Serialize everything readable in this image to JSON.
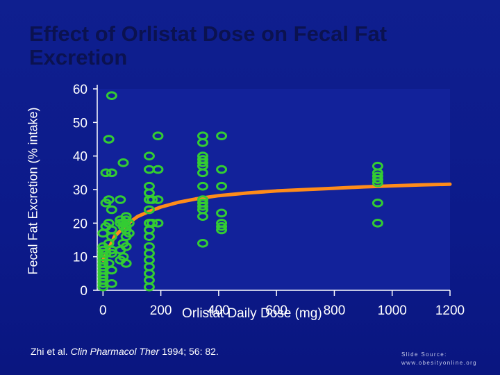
{
  "colors": {
    "background": "#0f1f8f",
    "title": "#0b1250",
    "plot_area": "#12229a",
    "marker": "#33cc33",
    "trend": "#ff8c1a",
    "text": "#ffffff"
  },
  "citation": {
    "prefix": "Zhi et al. ",
    "journal": "Clin Pharmacol Ther",
    "suffix": " 1994; 56: 82."
  },
  "source": {
    "line1": "Slide Source:",
    "line2": "www.obesityonline.org"
  },
  "chart_data": {
    "type": "scatter",
    "title": "Effect of Orlistat Dose on Fecal Fat Excretion",
    "xlabel": "Orlistat Daily Dose (mg)",
    "ylabel": "Fecal Fat Excretion (% intake)",
    "xlim": [
      -20,
      1200
    ],
    "ylim": [
      0,
      60
    ],
    "xticks": [
      0,
      200,
      400,
      600,
      800,
      1000,
      1200
    ],
    "yticks": [
      0,
      10,
      20,
      30,
      40,
      50,
      60
    ],
    "grid": false,
    "legend": "none",
    "series": [
      {
        "type": "scatter",
        "marker": "open-circle",
        "points": [
          [
            0,
            1
          ],
          [
            0,
            2
          ],
          [
            0,
            3
          ],
          [
            0,
            4
          ],
          [
            0,
            5
          ],
          [
            0,
            6
          ],
          [
            0,
            7
          ],
          [
            0,
            8
          ],
          [
            0,
            9
          ],
          [
            0,
            10
          ],
          [
            0,
            11
          ],
          [
            0,
            12
          ],
          [
            0,
            13
          ],
          [
            0,
            17
          ],
          [
            10,
            11
          ],
          [
            10,
            19
          ],
          [
            10,
            26
          ],
          [
            10,
            35
          ],
          [
            20,
            8
          ],
          [
            20,
            14
          ],
          [
            20,
            20
          ],
          [
            20,
            27
          ],
          [
            20,
            45
          ],
          [
            30,
            2
          ],
          [
            30,
            6
          ],
          [
            30,
            11
          ],
          [
            30,
            12
          ],
          [
            30,
            16
          ],
          [
            30,
            18
          ],
          [
            30,
            24
          ],
          [
            30,
            35
          ],
          [
            30,
            58
          ],
          [
            60,
            9
          ],
          [
            60,
            12
          ],
          [
            60,
            20
          ],
          [
            60,
            21
          ],
          [
            60,
            27
          ],
          [
            70,
            10
          ],
          [
            70,
            14
          ],
          [
            70,
            19
          ],
          [
            70,
            20
          ],
          [
            70,
            38
          ],
          [
            80,
            8
          ],
          [
            80,
            13
          ],
          [
            80,
            16
          ],
          [
            80,
            18
          ],
          [
            80,
            19
          ],
          [
            80,
            21
          ],
          [
            80,
            22
          ],
          [
            90,
            17
          ],
          [
            90,
            20
          ],
          [
            160,
            1
          ],
          [
            160,
            3
          ],
          [
            160,
            5
          ],
          [
            160,
            7
          ],
          [
            160,
            9
          ],
          [
            160,
            11
          ],
          [
            160,
            13
          ],
          [
            160,
            16
          ],
          [
            160,
            18
          ],
          [
            160,
            20
          ],
          [
            160,
            24
          ],
          [
            160,
            27
          ],
          [
            160,
            29
          ],
          [
            160,
            31
          ],
          [
            160,
            36
          ],
          [
            160,
            40
          ],
          [
            170,
            20
          ],
          [
            170,
            27
          ],
          [
            190,
            20
          ],
          [
            190,
            27
          ],
          [
            190,
            36
          ],
          [
            190,
            46
          ],
          [
            345,
            14
          ],
          [
            345,
            22
          ],
          [
            345,
            24
          ],
          [
            345,
            25
          ],
          [
            345,
            26
          ],
          [
            345,
            27
          ],
          [
            345,
            31
          ],
          [
            345,
            35
          ],
          [
            345,
            37
          ],
          [
            345,
            38
          ],
          [
            345,
            39
          ],
          [
            345,
            40
          ],
          [
            345,
            44
          ],
          [
            345,
            46
          ],
          [
            410,
            18
          ],
          [
            410,
            19
          ],
          [
            410,
            20
          ],
          [
            410,
            23
          ],
          [
            410,
            31
          ],
          [
            410,
            36
          ],
          [
            410,
            46
          ],
          [
            950,
            20
          ],
          [
            950,
            26
          ],
          [
            950,
            32
          ],
          [
            950,
            33
          ],
          [
            950,
            34
          ],
          [
            950,
            35
          ],
          [
            950,
            37
          ]
        ]
      },
      {
        "type": "line",
        "style": "fitted curve",
        "points": [
          [
            0,
            9
          ],
          [
            40,
            16
          ],
          [
            80,
            19.5
          ],
          [
            120,
            22
          ],
          [
            160,
            23.5
          ],
          [
            200,
            24.8
          ],
          [
            260,
            26.2
          ],
          [
            320,
            27.2
          ],
          [
            400,
            28.2
          ],
          [
            500,
            29
          ],
          [
            600,
            29.6
          ],
          [
            700,
            30
          ],
          [
            800,
            30.4
          ],
          [
            900,
            30.8
          ],
          [
            1000,
            31.1
          ],
          [
            1100,
            31.4
          ],
          [
            1200,
            31.6
          ]
        ]
      }
    ]
  }
}
